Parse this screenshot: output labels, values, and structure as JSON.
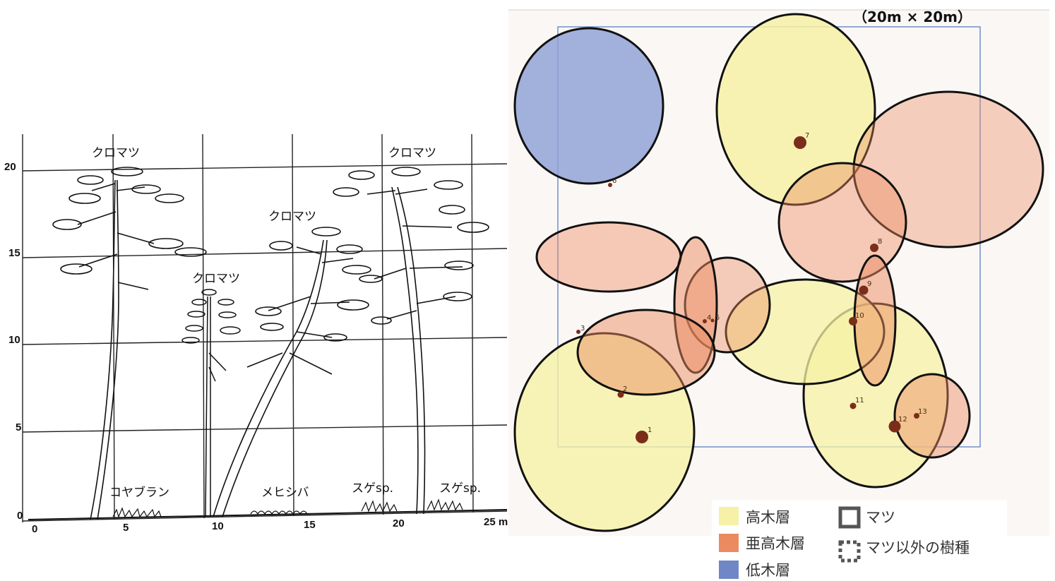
{
  "profile": {
    "x_ticks": [
      "0",
      "5",
      "10",
      "15",
      "20",
      "25 m"
    ],
    "y_ticks": [
      "0",
      "5",
      "10",
      "15",
      "20"
    ],
    "tree_labels": [
      "クロマツ",
      "クロマツ",
      "クロマツ",
      "クロマツ"
    ],
    "ground_labels": [
      "コヤブラン",
      "メヒシバ",
      "スゲsp.",
      "スゲsp."
    ]
  },
  "crown_map": {
    "scale_note": "（20m × 20m）",
    "trees": [
      {
        "num": "1",
        "kind": "pine",
        "layer": "tall"
      },
      {
        "num": "2",
        "kind": "pine",
        "layer": "subtall"
      },
      {
        "num": "3",
        "kind": "pine",
        "layer": "subtall"
      },
      {
        "num": "4",
        "kind": "pine",
        "layer": "subtall"
      },
      {
        "num": "5",
        "kind": "pine",
        "layer": "subtall"
      },
      {
        "num": "6",
        "kind": "pine",
        "layer": "low"
      },
      {
        "num": "7",
        "kind": "pine",
        "layer": "tall"
      },
      {
        "num": "8",
        "kind": "pine",
        "layer": "subtall"
      },
      {
        "num": "9",
        "kind": "pine",
        "layer": "subtall"
      },
      {
        "num": "10",
        "kind": "pine",
        "layer": "tall"
      },
      {
        "num": "11",
        "kind": "pine",
        "layer": "tall"
      },
      {
        "num": "12",
        "kind": "pine",
        "layer": "subtall"
      },
      {
        "num": "13",
        "kind": "pine",
        "layer": "subtall"
      }
    ]
  },
  "legend": {
    "tall_label": "高木層",
    "subtall_label": "亜高木層",
    "low_label": "低木層",
    "pine_label": "マツ",
    "other_label": "マツ以外の樹種"
  },
  "colors": {
    "tall": "#f6f1a6",
    "subtall": "#eb8a60",
    "low": "#6f86c7",
    "trunk": "#7a2e1a",
    "plot_border": "#5b7fc2"
  }
}
